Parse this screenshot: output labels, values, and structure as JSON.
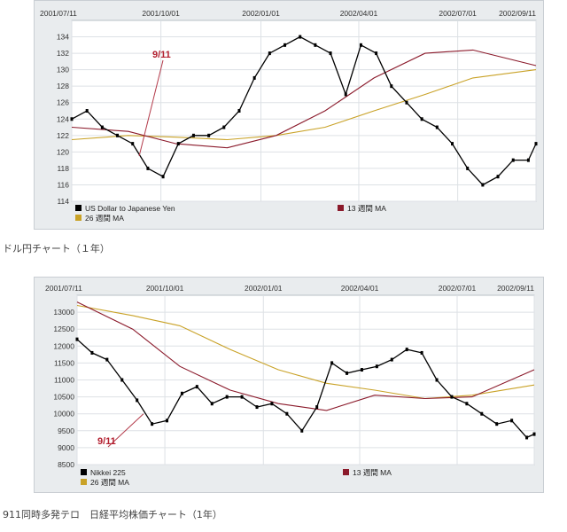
{
  "charts": [
    {
      "caption": "ドル円チャート（１年）",
      "chart_data": {
        "type": "line",
        "title": "",
        "x_dates": [
          "2001/07/11",
          "2001/10/01",
          "2002/01/01",
          "2002/04/01",
          "2002/07/01",
          "2002/09/11"
        ],
        "ylim": [
          114,
          136
        ],
        "y_ticks": [
          114,
          116,
          118,
          120,
          122,
          124,
          126,
          128,
          130,
          132,
          134
        ],
        "grid": true,
        "annotation": {
          "label": "9/11",
          "date": "2001/09/11",
          "value": 119.5
        },
        "legend": [
          "US Dollar to Japanese Yen",
          "13 週間 MA",
          "26 週間 MA"
        ],
        "series": [
          {
            "name": "US Dollar to Japanese Yen",
            "color": "#000000",
            "x": [
              "2001/07/11",
              "2001/07/25",
              "2001/08/08",
              "2001/08/22",
              "2001/09/05",
              "2001/09/19",
              "2001/10/03",
              "2001/10/17",
              "2001/10/31",
              "2001/11/14",
              "2001/11/28",
              "2001/12/12",
              "2001/12/26",
              "2002/01/09",
              "2002/01/23",
              "2002/02/06",
              "2002/02/20",
              "2002/03/06",
              "2002/03/20",
              "2002/04/03",
              "2002/04/17",
              "2002/05/01",
              "2002/05/15",
              "2002/05/29",
              "2002/06/12",
              "2002/06/26",
              "2002/07/10",
              "2002/07/24",
              "2002/08/07",
              "2002/08/21",
              "2002/09/04",
              "2002/09/11"
            ],
            "values": [
              124,
              125,
              123,
              122,
              121,
              118,
              117,
              121,
              122,
              122,
              123,
              125,
              129,
              132,
              133,
              134,
              133,
              132,
              127,
              133,
              132,
              128,
              126,
              124,
              123,
              121,
              118,
              116,
              117,
              119,
              119,
              121
            ]
          },
          {
            "name": "13 週間 MA",
            "color": "#8b1a2b",
            "x": [
              "2001/07/11",
              "2001/09/01",
              "2001/10/15",
              "2001/12/01",
              "2002/01/15",
              "2002/03/01",
              "2002/04/15",
              "2002/06/01",
              "2002/07/15",
              "2002/09/11"
            ],
            "values": [
              123,
              122.5,
              121,
              120.5,
              122,
              125,
              129,
              132,
              132.4,
              130.5
            ]
          },
          {
            "name": "26 週間 MA",
            "color": "#c9a227",
            "x": [
              "2001/07/11",
              "2001/09/01",
              "2001/10/15",
              "2001/12/01",
              "2002/01/15",
              "2002/03/01",
              "2002/04/15",
              "2002/06/01",
              "2002/07/15",
              "2002/09/11"
            ],
            "values": [
              121.5,
              122,
              121.8,
              121.5,
              122,
              123,
              125,
              127,
              129,
              130
            ]
          }
        ]
      }
    },
    {
      "caption": "911同時多発テロ　日経平均株価チャート（1年）",
      "chart_data": {
        "type": "line",
        "title": "",
        "x_dates": [
          "2001/07/11",
          "2001/10/01",
          "2002/01/01",
          "2002/04/01",
          "2002/07/01",
          "2002/09/11"
        ],
        "ylim": [
          8500,
          13500
        ],
        "y_ticks": [
          8500,
          9000,
          9500,
          10000,
          10500,
          11000,
          11500,
          12000,
          12500,
          13000
        ],
        "grid": true,
        "annotation": {
          "label": "9/11",
          "date": "2001/09/11",
          "value": 10000
        },
        "legend": [
          "Nikkei 225",
          "13 週間 MA",
          "26 週間 MA"
        ],
        "series": [
          {
            "name": "Nikkei 225",
            "color": "#000000",
            "x": [
              "2001/07/11",
              "2001/07/25",
              "2001/08/08",
              "2001/08/22",
              "2001/09/05",
              "2001/09/19",
              "2001/10/03",
              "2001/10/17",
              "2001/10/31",
              "2001/11/14",
              "2001/11/28",
              "2001/12/12",
              "2001/12/26",
              "2002/01/09",
              "2002/01/23",
              "2002/02/06",
              "2002/02/20",
              "2002/03/06",
              "2002/03/20",
              "2002/04/03",
              "2002/04/17",
              "2002/05/01",
              "2002/05/15",
              "2002/05/29",
              "2002/06/12",
              "2002/06/26",
              "2002/07/10",
              "2002/07/24",
              "2002/08/07",
              "2002/08/21",
              "2002/09/04",
              "2002/09/11"
            ],
            "values": [
              12200,
              11800,
              11600,
              11000,
              10400,
              9700,
              9800,
              10600,
              10800,
              10300,
              10500,
              10500,
              10200,
              10300,
              10000,
              9500,
              10200,
              11500,
              11200,
              11300,
              11400,
              11600,
              11900,
              11800,
              11000,
              10500,
              10300,
              10000,
              9700,
              9800,
              9300,
              9400
            ]
          },
          {
            "name": "13 週間 MA",
            "color": "#8b1a2b",
            "x": [
              "2001/07/11",
              "2001/09/01",
              "2001/10/15",
              "2001/12/01",
              "2002/01/15",
              "2002/03/01",
              "2002/04/15",
              "2002/06/01",
              "2002/07/15",
              "2002/09/11"
            ],
            "values": [
              13300,
              12500,
              11400,
              10700,
              10300,
              10100,
              10550,
              10450,
              10500,
              11300
            ]
          },
          {
            "name": "26 週間 MA",
            "color": "#c9a227",
            "x": [
              "2001/07/11",
              "2001/09/01",
              "2001/10/15",
              "2001/12/01",
              "2002/01/15",
              "2002/03/01",
              "2002/04/15",
              "2002/06/01",
              "2002/07/15",
              "2002/09/11"
            ],
            "values": [
              13200,
              12900,
              12600,
              11900,
              11300,
              10900,
              10700,
              10450,
              10550,
              10850
            ]
          }
        ]
      }
    }
  ]
}
